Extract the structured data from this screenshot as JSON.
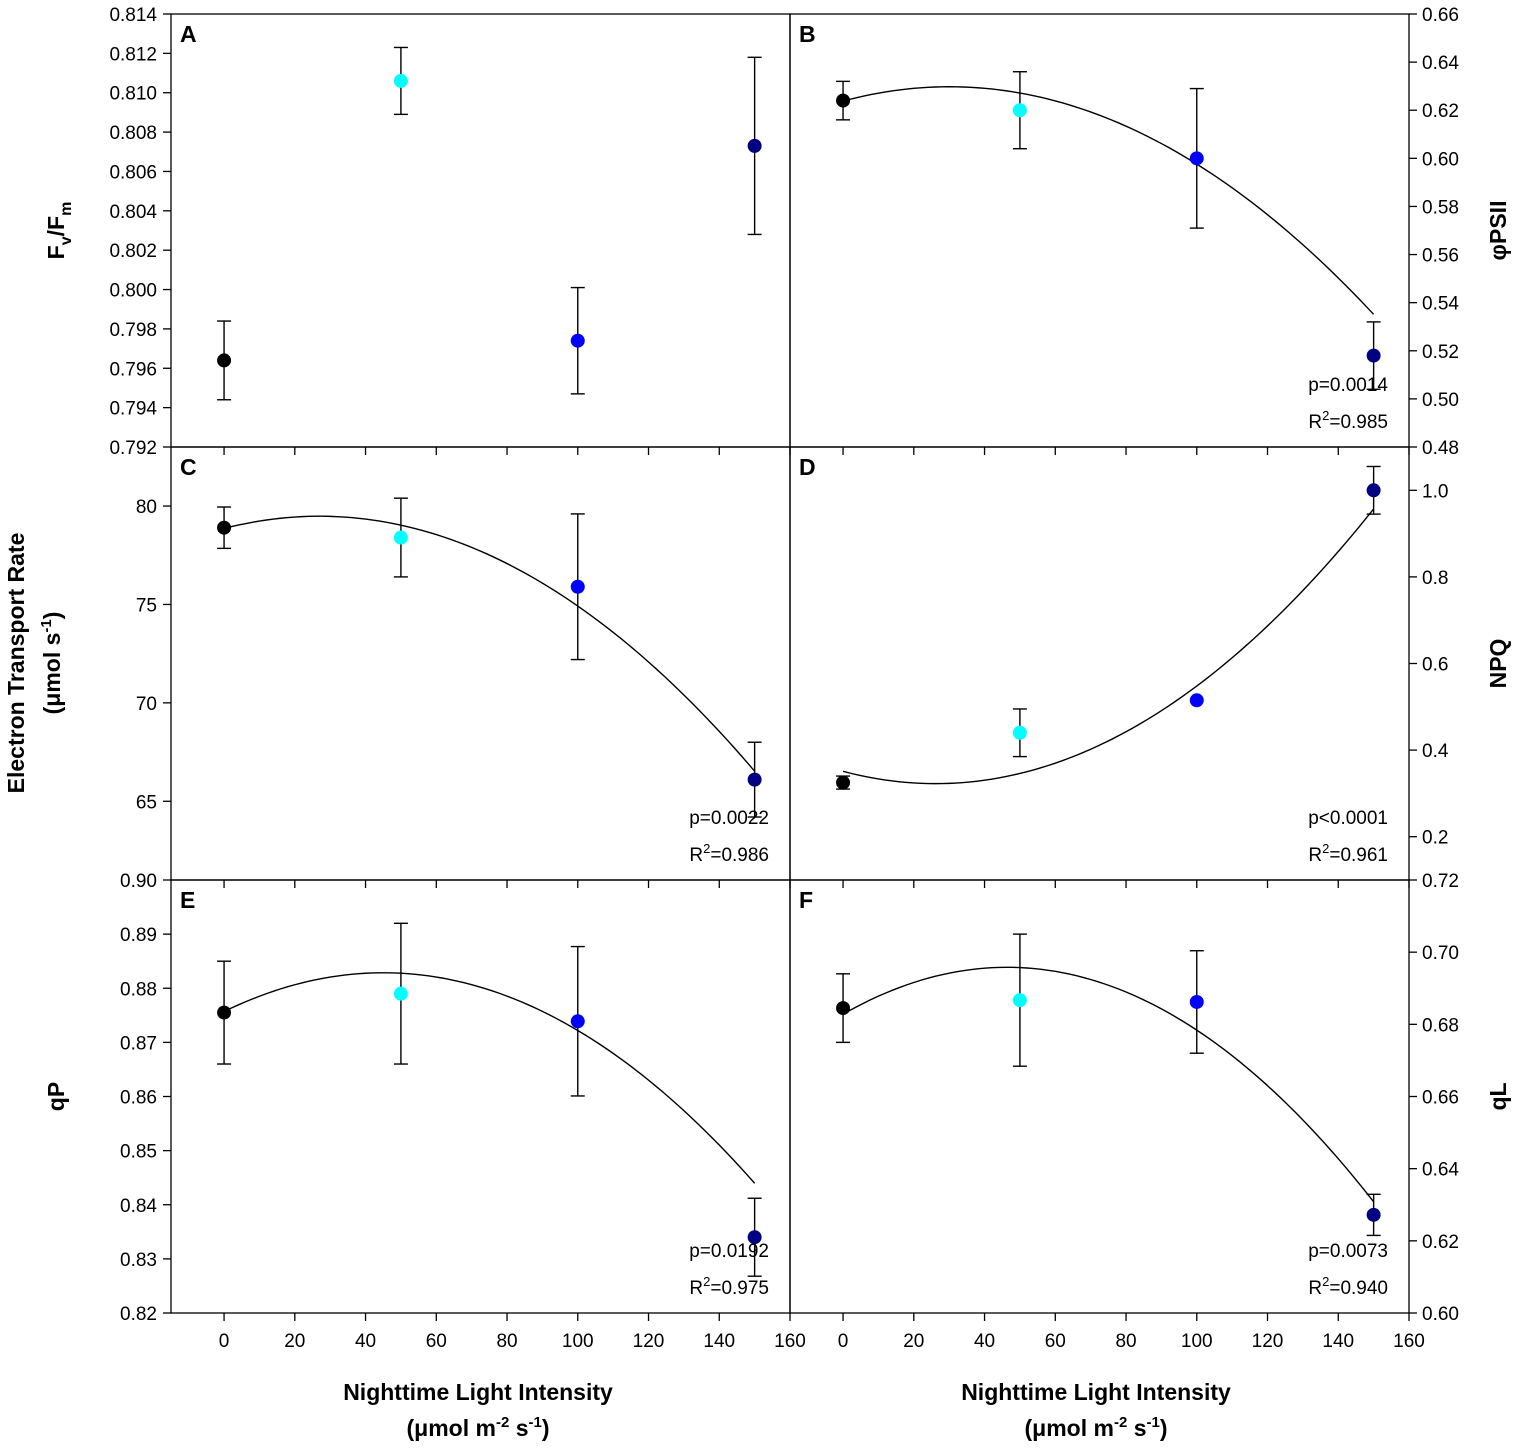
{
  "figure": {
    "x_title": "Nighttime Light Intensity",
    "x_unit": {
      "pre": "(",
      "mu": "μ",
      "a": "mol m",
      "sup1": "-2",
      "b": " s",
      "sup2": "-1",
      "post": ")"
    },
    "etr_title": "Electron Transport Rate",
    "etr_unit": {
      "pre": "(",
      "mu": "μ",
      "a": "mol s",
      "sup": "-1",
      "post": ")"
    }
  },
  "chart_data": [
    {
      "id": "A",
      "type": "scatter",
      "letter": "A",
      "side": "left",
      "ylabel": {
        "main": "F",
        "sub1": "v",
        "mid": "/F",
        "sub2": "m"
      },
      "xlim": [
        -15,
        160
      ],
      "ylim": [
        0.792,
        0.814
      ],
      "xticks": [
        "0",
        "20",
        "40",
        "60",
        "80",
        "100",
        "120",
        "140",
        "160"
      ],
      "yticks": [
        "0.792",
        "0.794",
        "0.796",
        "0.798",
        "0.800",
        "0.802",
        "0.804",
        "0.806",
        "0.808",
        "0.810",
        "0.812",
        "0.814"
      ],
      "x": [
        0,
        50,
        100,
        150
      ],
      "y": [
        0.7964,
        0.8106,
        0.7974,
        0.8073
      ],
      "yerr": [
        0.002,
        0.0017,
        0.0027,
        0.0045
      ],
      "fit": null,
      "stats": null
    },
    {
      "id": "B",
      "type": "scatter",
      "letter": "B",
      "side": "right",
      "ylabel": {
        "main": "φPSII"
      },
      "xlim": [
        -15,
        160
      ],
      "ylim": [
        0.48,
        0.66
      ],
      "xticks": [
        "0",
        "20",
        "40",
        "60",
        "80",
        "100",
        "120",
        "140",
        "160"
      ],
      "yticks": [
        "0.48",
        "0.50",
        "0.52",
        "0.54",
        "0.56",
        "0.58",
        "0.60",
        "0.62",
        "0.64",
        "0.66"
      ],
      "x": [
        0,
        50,
        100,
        150
      ],
      "y": [
        0.624,
        0.62,
        0.6,
        0.518
      ],
      "yerr": [
        0.008,
        0.016,
        0.029,
        0.014
      ],
      "fit": [
        0.6238,
        0.000396,
        -6.58e-06
      ],
      "stats": {
        "p": "p=0.0014",
        "r_pre": "R",
        "r_sup": "2",
        "r_post": "=0.985"
      }
    },
    {
      "id": "C",
      "type": "scatter",
      "letter": "C",
      "side": "left",
      "ylabel": null,
      "xlim": [
        -15,
        160
      ],
      "ylim": [
        61,
        83
      ],
      "xticks": [
        "0",
        "20",
        "40",
        "60",
        "80",
        "100",
        "120",
        "140",
        "160"
      ],
      "yticks": [
        "65",
        "70",
        "75",
        "80"
      ],
      "x": [
        0,
        50,
        100,
        150
      ],
      "y": [
        78.9,
        78.4,
        75.9,
        66.1
      ],
      "yerr": [
        1.05,
        2.0,
        3.7,
        1.9
      ],
      "fit": [
        78.86,
        0.0462,
        -0.000856
      ],
      "stats": {
        "p": "p=0.0022",
        "r_pre": "R",
        "r_sup": "2",
        "r_post": "=0.986"
      }
    },
    {
      "id": "D",
      "type": "scatter",
      "letter": "D",
      "side": "right",
      "ylabel": {
        "main": "NPQ"
      },
      "xlim": [
        -15,
        160
      ],
      "ylim": [
        0.1,
        1.1
      ],
      "xticks": [
        "0",
        "20",
        "40",
        "60",
        "80",
        "100",
        "120",
        "140",
        "160"
      ],
      "yticks": [
        "0.2",
        "0.4",
        "0.6",
        "0.8",
        "1.0"
      ],
      "x": [
        0,
        50,
        100,
        150
      ],
      "y": [
        0.325,
        0.44,
        0.515,
        1.0
      ],
      "yerr": [
        0.015,
        0.055,
        0.0,
        0.055
      ],
      "fit": [
        0.351,
        -0.00217,
        4.14e-05
      ],
      "stats": {
        "p": "p<0.0001",
        "r_pre": "R",
        "r_sup": "2",
        "r_post": "=0.961"
      }
    },
    {
      "id": "E",
      "type": "scatter",
      "letter": "E",
      "side": "left",
      "ylabel": {
        "main": "qP"
      },
      "xlim": [
        -15,
        160
      ],
      "ylim": [
        0.82,
        0.9
      ],
      "xticks": [
        "0",
        "20",
        "40",
        "60",
        "80",
        "100",
        "120",
        "140",
        "160"
      ],
      "yticks": [
        "0.82",
        "0.83",
        "0.84",
        "0.85",
        "0.86",
        "0.87",
        "0.88",
        "0.89",
        "0.90"
      ],
      "x": [
        0,
        50,
        100,
        150
      ],
      "y": [
        0.8755,
        0.879,
        0.8739,
        0.834
      ],
      "yerr": [
        0.0095,
        0.013,
        0.0138,
        0.0072
      ],
      "fit": [
        0.8757,
        0.000318,
        -3.53e-06
      ],
      "stats": {
        "p": "p=0.0192",
        "r_pre": "R",
        "r_sup": "2",
        "r_post": "=0.975"
      }
    },
    {
      "id": "F",
      "type": "scatter",
      "letter": "F",
      "side": "right",
      "ylabel": {
        "main": "qL"
      },
      "xlim": [
        -15,
        160
      ],
      "ylim": [
        0.6,
        0.72
      ],
      "xticks": [
        "0",
        "20",
        "40",
        "60",
        "80",
        "100",
        "120",
        "140",
        "160"
      ],
      "yticks": [
        "0.60",
        "0.62",
        "0.64",
        "0.66",
        "0.68",
        "0.70",
        "0.72"
      ],
      "x": [
        0,
        50,
        100,
        150
      ],
      "y": [
        0.6845,
        0.6867,
        0.6862,
        0.6272
      ],
      "yerr": [
        0.0095,
        0.0183,
        0.0142,
        0.0057
      ],
      "fit": [
        0.6828,
        0.000561,
        -6.05e-06
      ],
      "stats": {
        "p": "p=0.0073",
        "r_pre": "R",
        "r_sup": "2",
        "r_post": "=0.940"
      }
    }
  ],
  "colors": {
    "points": [
      "#000000",
      "#00ffff",
      "#0000ff",
      "#000080"
    ],
    "line": "#000000"
  }
}
